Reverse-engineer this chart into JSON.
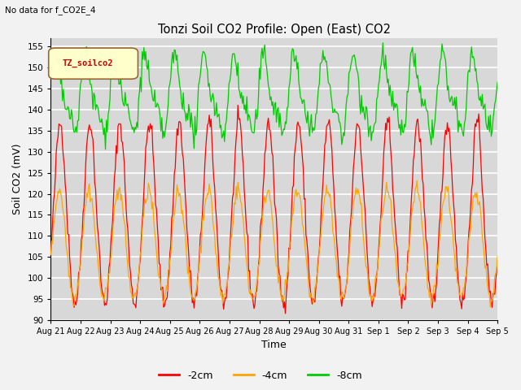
{
  "title": "Tonzi Soil CO2 Profile: Open (East) CO2",
  "subtitle": "No data for f_CO2E_4",
  "ylabel": "Soil CO2 (mV)",
  "xlabel": "Time",
  "ylim": [
    90,
    157
  ],
  "yticks": [
    90,
    95,
    100,
    105,
    110,
    115,
    120,
    125,
    130,
    135,
    140,
    145,
    150,
    155
  ],
  "legend_label": "TZ_soilco2",
  "series_labels": [
    "-2cm",
    "-4cm",
    "-8cm"
  ],
  "series_colors": [
    "#ff0000",
    "#ffa500",
    "#00cc00"
  ],
  "bg_color": "#d8d8d8",
  "grid_color": "#ffffff",
  "n_points": 500,
  "red_base": 113,
  "red_amp": 19,
  "orange_base": 107,
  "orange_amp": 12,
  "green_base": 143,
  "green_amp": 8,
  "day_labels": [
    "Aug 21",
    "Aug 22",
    "Aug 23",
    "Aug 24",
    "Aug 25",
    "Aug 26",
    "Aug 27",
    "Aug 28",
    "Aug 29",
    "Aug 30",
    "Aug 31",
    "Sep 1",
    "Sep 2",
    "Sep 3",
    "Sep 4",
    "Sep 5"
  ]
}
